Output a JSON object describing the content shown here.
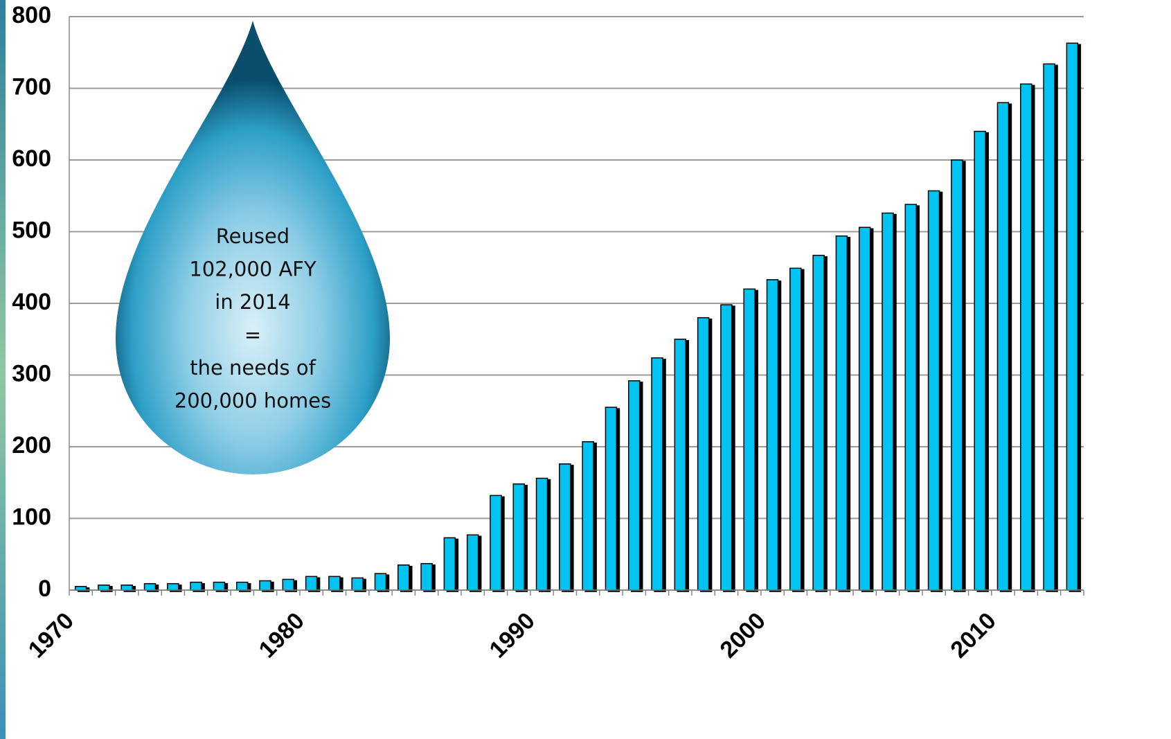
{
  "chart_data": {
    "type": "bar",
    "categories": [
      "1970",
      null,
      null,
      null,
      null,
      null,
      null,
      null,
      null,
      null,
      "1980",
      null,
      null,
      null,
      null,
      null,
      null,
      null,
      null,
      null,
      "1990",
      null,
      null,
      null,
      null,
      null,
      null,
      null,
      null,
      null,
      "2000",
      null,
      null,
      null,
      null,
      null,
      null,
      null,
      null,
      null,
      "2010",
      null,
      null,
      null
    ],
    "values": [
      5,
      7,
      7,
      9,
      9,
      11,
      11,
      11,
      13,
      15,
      19,
      19,
      17,
      23,
      35,
      37,
      73,
      77,
      132,
      148,
      156,
      176,
      207,
      255,
      292,
      324,
      350,
      380,
      398,
      420,
      433,
      449,
      467,
      494,
      506,
      526,
      538,
      557,
      600,
      640,
      680,
      706,
      734,
      763
    ],
    "color": "#00c3f2",
    "ylim": [
      0,
      800
    ],
    "yticks": [
      0,
      100,
      200,
      300,
      400,
      500,
      600,
      700,
      800
    ],
    "grid": true,
    "annotation": [
      "Reused",
      "102,000 AFY",
      "in 2014",
      "=",
      "the needs of",
      "200,000 homes"
    ]
  }
}
